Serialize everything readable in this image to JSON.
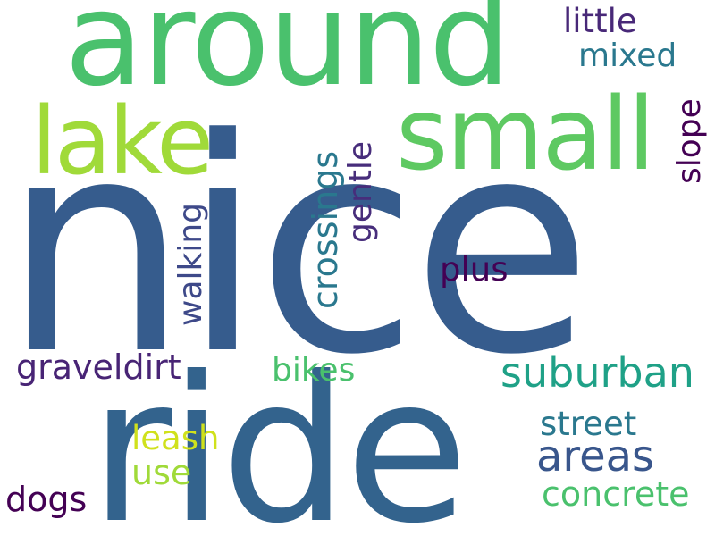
{
  "words": {
    "nice": {
      "text": "nice",
      "color": "#365c8d"
    },
    "ride": {
      "text": "ride",
      "color": "#33638d"
    },
    "around": {
      "text": "around",
      "color": "#4ac16d"
    },
    "small": {
      "text": "small",
      "color": "#5ec962"
    },
    "lake": {
      "text": "lake",
      "color": "#a0da39"
    },
    "suburban": {
      "text": "suburban",
      "color": "#1fa187"
    },
    "areas": {
      "text": "areas",
      "color": "#39568c"
    },
    "concrete": {
      "text": "concrete",
      "color": "#4ac16d"
    },
    "street": {
      "text": "street",
      "color": "#2a788e"
    },
    "graveldirt": {
      "text": "graveldirt",
      "color": "#482475"
    },
    "bikes": {
      "text": "bikes",
      "color": "#4ac16d"
    },
    "leash": {
      "text": "leash",
      "color": "#d0e11c"
    },
    "use": {
      "text": "use",
      "color": "#a0da39"
    },
    "dogs": {
      "text": "dogs",
      "color": "#440154"
    },
    "plus": {
      "text": "plus",
      "color": "#440154"
    },
    "little": {
      "text": "little",
      "color": "#482878"
    },
    "mixed": {
      "text": "mixed",
      "color": "#2a788e"
    },
    "walking": {
      "text": "walking",
      "color": "#3e4989"
    },
    "crossings": {
      "text": "crossings",
      "color": "#2a788e"
    },
    "gentle": {
      "text": "gentle",
      "color": "#472d7b"
    },
    "slope": {
      "text": "slope",
      "color": "#440154"
    }
  },
  "background": "#ffffff"
}
